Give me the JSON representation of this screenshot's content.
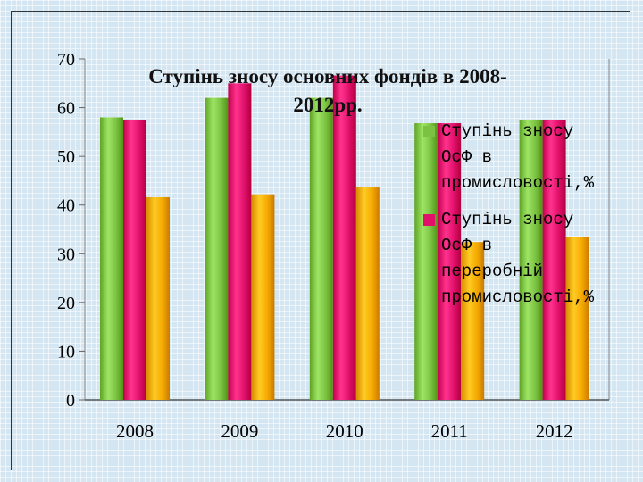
{
  "chart_data": {
    "type": "bar",
    "title_lines": [
      "Ступінь зносу основних фондів в 2008-",
      "2012рр."
    ],
    "xlabel": "",
    "ylabel": "",
    "ylim": [
      0,
      70
    ],
    "y_ticks": [
      "0",
      "10",
      "20",
      "30",
      "40",
      "50",
      "60",
      "70"
    ],
    "categories": [
      "2008",
      "2009",
      "2010",
      "2011",
      "2012"
    ],
    "grid": false,
    "legend_position": "right",
    "series": [
      {
        "name_lines": [
          "Ступінь зносу",
          "ОсФ в",
          "промисловості,%"
        ],
        "color": "#7cc242",
        "values": [
          58,
          62,
          62,
          56.8,
          57.4
        ]
      },
      {
        "name_lines": [
          "Ступінь зносу",
          "ОсФ в",
          "переробній",
          "промисловості,%"
        ],
        "color": "#e0106b",
        "values": [
          57.4,
          65,
          66.6,
          56.8,
          57.4
        ]
      },
      {
        "name_lines": [],
        "color": "#f5a800",
        "values": [
          41.6,
          42.2,
          43.6,
          32.4,
          33.5
        ]
      }
    ]
  }
}
